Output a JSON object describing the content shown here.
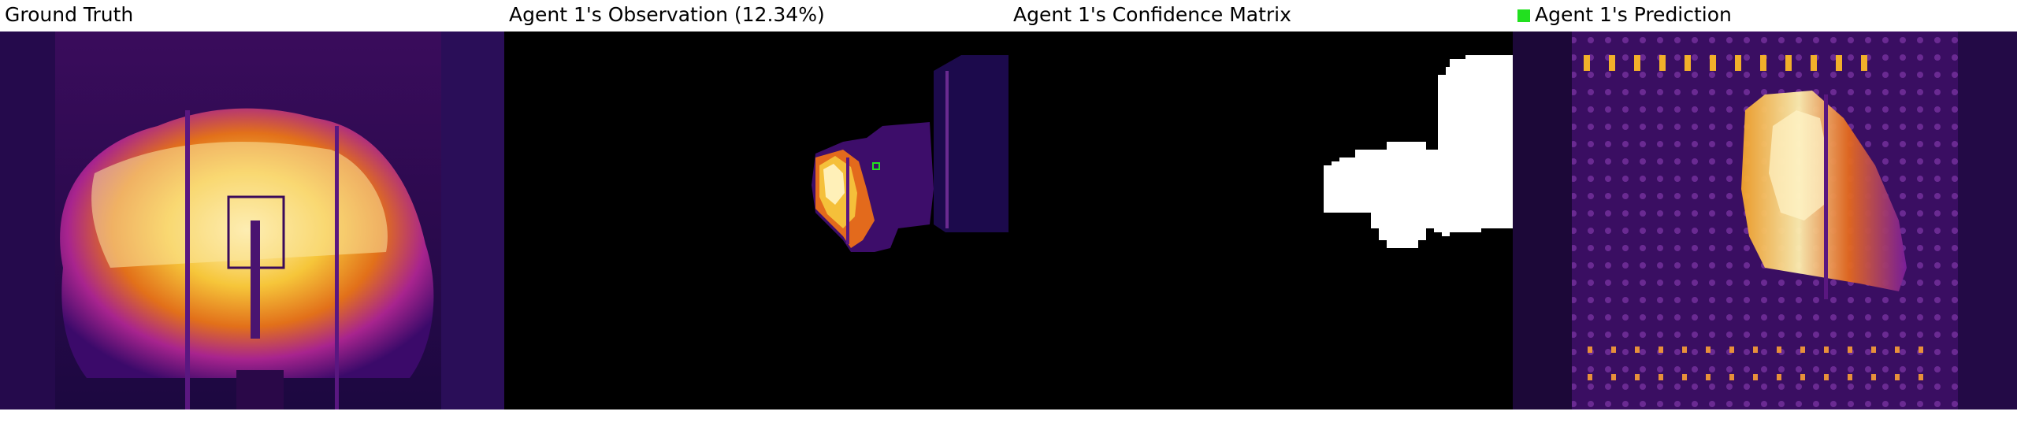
{
  "panels": [
    {
      "title": "Ground Truth"
    },
    {
      "title": "Agent 1's Observation (12.34%)"
    },
    {
      "title": "Agent 1's Confidence Matrix"
    },
    {
      "title": "Agent 1's Prediction"
    }
  ],
  "legend": {
    "prediction_swatch_color": "#22e01f",
    "observation_marker_color": "#22e01f"
  },
  "palette": {
    "background": "#000000",
    "mask": "#ffffff",
    "thermal_dark": "#1a0638",
    "thermal_mid": "#7a1ea0",
    "thermal_hot": "#f4b12a",
    "thermal_white": "#fff4c8"
  }
}
